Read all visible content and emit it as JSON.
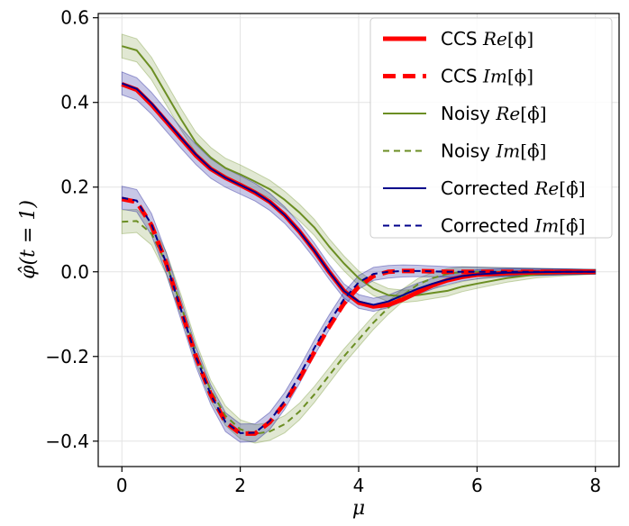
{
  "chart_data": {
    "type": "line",
    "title": "",
    "xlabel": "μ",
    "ylabel": "φ̂(t = 1)",
    "xlim": [
      -0.4,
      8.4
    ],
    "ylim": [
      -0.46,
      0.61
    ],
    "xticks": [
      0,
      2,
      4,
      6,
      8
    ],
    "xtick_labels": [
      "0",
      "2",
      "4",
      "6",
      "8"
    ],
    "yticks": [
      -0.4,
      -0.2,
      0.0,
      0.2,
      0.4,
      0.6
    ],
    "ytick_labels": [
      "−0.4",
      "−0.2",
      "0.0",
      "0.2",
      "0.4",
      "0.6"
    ],
    "grid": true,
    "legend_position": "top-right",
    "x": [
      0,
      0.25,
      0.5,
      0.75,
      1.0,
      1.25,
      1.5,
      1.75,
      2.0,
      2.25,
      2.5,
      2.75,
      3.0,
      3.25,
      3.5,
      3.75,
      4.0,
      4.25,
      4.5,
      4.75,
      5.0,
      5.25,
      5.5,
      5.75,
      6.0,
      6.5,
      7.0,
      7.5,
      8.0
    ],
    "bands": [
      {
        "series": "Noisy Re",
        "color": "#6b8e23",
        "opacity": 0.2,
        "half_width": 0.028
      },
      {
        "series": "Noisy Im",
        "color": "#6b8e23",
        "opacity": 0.2,
        "half_width": 0.028
      },
      {
        "series": "Corrected Re",
        "color": "#00008b",
        "opacity": 0.22,
        "half_width": 0.027
      },
      {
        "series": "Corrected Im",
        "color": "#00008b",
        "opacity": 0.22,
        "half_width": 0.027
      }
    ],
    "series": [
      {
        "name": "CCS Re",
        "legend_plain": "CCS ",
        "legend_italic": "Re",
        "legend_bracket": "[ϕ]",
        "color": "#ff0000",
        "width": 5,
        "dash": "",
        "values": [
          0.443,
          0.43,
          0.395,
          0.355,
          0.315,
          0.275,
          0.243,
          0.222,
          0.205,
          0.187,
          0.165,
          0.134,
          0.095,
          0.05,
          0.0,
          -0.045,
          -0.073,
          -0.082,
          -0.078,
          -0.065,
          -0.048,
          -0.032,
          -0.02,
          -0.012,
          -0.007,
          -0.003,
          -0.001,
          0.0,
          0.0
        ]
      },
      {
        "name": "CCS Im",
        "legend_plain": "CCS ",
        "legend_italic": "Im",
        "legend_bracket": "[ϕ]",
        "color": "#ff0000",
        "width": 5,
        "dash": "14,8",
        "values": [
          0.172,
          0.165,
          0.11,
          0.02,
          -0.09,
          -0.2,
          -0.29,
          -0.355,
          -0.382,
          -0.382,
          -0.355,
          -0.31,
          -0.252,
          -0.19,
          -0.13,
          -0.075,
          -0.035,
          -0.01,
          0.0,
          0.002,
          0.002,
          0.001,
          0.0,
          0.0,
          0.0,
          0.0,
          0.0,
          0.0,
          0.0
        ]
      },
      {
        "name": "Noisy Re",
        "legend_plain": "Noisy ",
        "legend_italic": "Re",
        "legend_bracket": "[ϕ̂]",
        "color": "#6b8e23",
        "width": 2,
        "dash": "",
        "values": [
          0.533,
          0.523,
          0.48,
          0.42,
          0.36,
          0.305,
          0.27,
          0.245,
          0.23,
          0.213,
          0.195,
          0.17,
          0.14,
          0.105,
          0.06,
          0.02,
          -0.015,
          -0.04,
          -0.055,
          -0.058,
          -0.055,
          -0.05,
          -0.045,
          -0.035,
          -0.028,
          -0.015,
          -0.006,
          -0.002,
          0.0
        ]
      },
      {
        "name": "Noisy Im",
        "legend_plain": "Noisy ",
        "legend_italic": "Im",
        "legend_bracket": "[ϕ̂]",
        "color": "#6b8e23",
        "width": 2,
        "dash": "7,5",
        "values": [
          0.118,
          0.12,
          0.09,
          0.02,
          -0.08,
          -0.19,
          -0.28,
          -0.34,
          -0.372,
          -0.383,
          -0.377,
          -0.36,
          -0.33,
          -0.29,
          -0.245,
          -0.2,
          -0.16,
          -0.12,
          -0.085,
          -0.055,
          -0.03,
          -0.015,
          -0.005,
          0.0,
          0.0,
          0.0,
          0.0,
          0.0,
          0.0
        ]
      },
      {
        "name": "Corrected Re",
        "legend_plain": "Corrected ",
        "legend_italic": "Re",
        "legend_bracket": "[ϕ̂]",
        "color": "#00008b",
        "width": 2,
        "dash": "",
        "values": [
          0.445,
          0.432,
          0.398,
          0.357,
          0.316,
          0.277,
          0.244,
          0.222,
          0.205,
          0.188,
          0.165,
          0.134,
          0.095,
          0.05,
          0.0,
          -0.045,
          -0.07,
          -0.078,
          -0.07,
          -0.055,
          -0.04,
          -0.028,
          -0.018,
          -0.01,
          -0.006,
          -0.002,
          -0.001,
          0.0,
          0.0
        ]
      },
      {
        "name": "Corrected Im",
        "legend_plain": "Corrected ",
        "legend_italic": "Im",
        "legend_bracket": "[ϕ̂]",
        "color": "#00008b",
        "width": 2,
        "dash": "7,5",
        "values": [
          0.175,
          0.168,
          0.112,
          0.02,
          -0.09,
          -0.2,
          -0.29,
          -0.355,
          -0.381,
          -0.38,
          -0.352,
          -0.305,
          -0.245,
          -0.18,
          -0.12,
          -0.065,
          -0.025,
          -0.005,
          0.0,
          0.002,
          0.002,
          0.001,
          0.0,
          0.0,
          0.0,
          0.0,
          0.0,
          0.0,
          0.0
        ]
      }
    ]
  }
}
